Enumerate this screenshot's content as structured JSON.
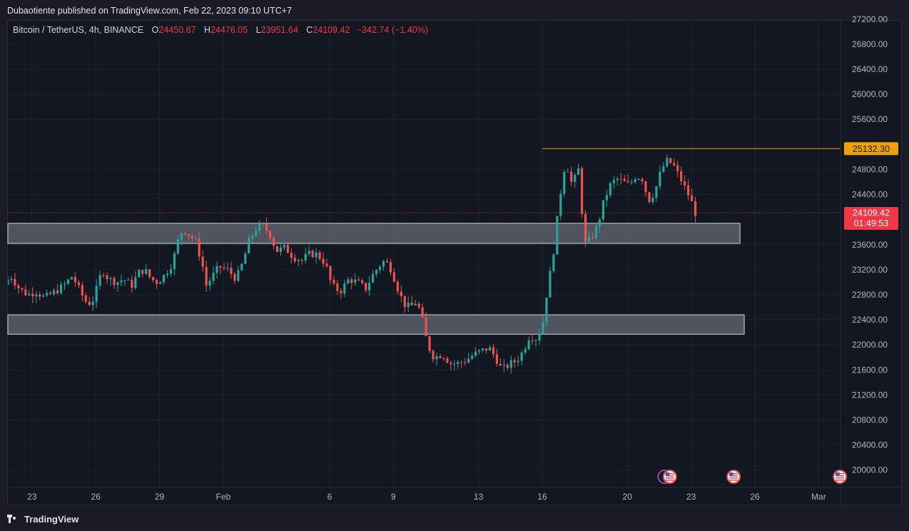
{
  "header": {
    "published": "Dubaotiente published on TradingView.com, Feb 22, 2023 09:10 UTC+7"
  },
  "legend": {
    "symbol": "Bitcoin / TetherUS, 4h, BINANCE",
    "o_label": "O",
    "o": "24450.67",
    "h_label": "H",
    "h": "24476.05",
    "l_label": "L",
    "l": "23951.64",
    "c_label": "C",
    "c": "24109.42",
    "change": "−342.74 (−1.40%)"
  },
  "price_tags": {
    "resistance": "25132.30",
    "last": "24109.42",
    "countdown": "01:49:53"
  },
  "footer": {
    "brand": "TradingView"
  },
  "colors": {
    "up": "#26a69a",
    "down": "#ef5350",
    "resistance": "#f0a000",
    "zone": "#5c5f68",
    "bg": "#131722"
  },
  "events": [
    {
      "day": 20.75,
      "icon": "lightning-icon"
    },
    {
      "day": 21.0,
      "icon": "us-flag-icon"
    },
    {
      "day": 24.0,
      "icon": "us-flag-icon"
    },
    {
      "day": 29.0,
      "icon": "us-flag-icon"
    }
  ],
  "chart_data": {
    "type": "candlestick",
    "title": "",
    "xlabel": "",
    "ylabel": "",
    "x_ticks": [
      {
        "label": "23",
        "day": -9
      },
      {
        "label": "26",
        "day": -6
      },
      {
        "label": "29",
        "day": -3
      },
      {
        "label": "Feb",
        "day": 0
      },
      {
        "label": "6",
        "day": 5
      },
      {
        "label": "9",
        "day": 8
      },
      {
        "label": "13",
        "day": 12
      },
      {
        "label": "16",
        "day": 15
      },
      {
        "label": "20",
        "day": 19
      },
      {
        "label": "23",
        "day": 22
      },
      {
        "label": "26",
        "day": 25
      },
      {
        "label": "Mar",
        "day": 28
      }
    ],
    "y_ticks": [
      "20000.00",
      "20400.00",
      "20800.00",
      "21200.00",
      "21600.00",
      "22000.00",
      "22400.00",
      "22800.00",
      "23200.00",
      "23600.00",
      "24400.00",
      "24800.00",
      "25600.00",
      "26000.00",
      "26400.00",
      "26800.00",
      "27200.00"
    ],
    "ylim": [
      19800,
      27200
    ],
    "resistance_level": 25132.3,
    "last_price": 24109.42,
    "zones": [
      {
        "top": 23940,
        "bottom": 23620,
        "day_start": -10.3,
        "day_end": 24.3
      },
      {
        "top": 22480,
        "bottom": 22170,
        "day_start": -10.3,
        "day_end": 24.5
      }
    ],
    "close_path": [
      [
        -10.3,
        22960
      ],
      [
        -10.0,
        23100
      ],
      [
        -9.6,
        22900
      ],
      [
        -9.2,
        22800
      ],
      [
        -8.8,
        22850
      ],
      [
        -8.4,
        22750
      ],
      [
        -7.9,
        22850
      ],
      [
        -7.5,
        22950
      ],
      [
        -7.1,
        23100
      ],
      [
        -6.8,
        22900
      ],
      [
        -6.5,
        22700
      ],
      [
        -6.2,
        22650
      ],
      [
        -6.0,
        22850
      ],
      [
        -5.7,
        23200
      ],
      [
        -5.4,
        23050
      ],
      [
        -5.0,
        23000
      ],
      [
        -4.7,
        23050
      ],
      [
        -4.3,
        22950
      ],
      [
        -4.0,
        23150
      ],
      [
        -3.7,
        23200
      ],
      [
        -3.4,
        23050
      ],
      [
        -3.1,
        23000
      ],
      [
        -2.8,
        23100
      ],
      [
        -2.4,
        23300
      ],
      [
        -2.1,
        23700
      ],
      [
        -1.9,
        23850
      ],
      [
        -1.6,
        23750
      ],
      [
        -1.3,
        23650
      ],
      [
        -1.0,
        23300
      ],
      [
        -0.8,
        22950
      ],
      [
        -0.5,
        23100
      ],
      [
        -0.2,
        23250
      ],
      [
        0.2,
        23200
      ],
      [
        0.6,
        23050
      ],
      [
        0.9,
        23300
      ],
      [
        1.2,
        23650
      ],
      [
        1.5,
        23850
      ],
      [
        1.9,
        23900
      ],
      [
        2.2,
        23750
      ],
      [
        2.5,
        23500
      ],
      [
        2.9,
        23550
      ],
      [
        3.3,
        23400
      ],
      [
        3.7,
        23350
      ],
      [
        4.0,
        23450
      ],
      [
        4.4,
        23450
      ],
      [
        4.8,
        23300
      ],
      [
        5.1,
        22950
      ],
      [
        5.5,
        22850
      ],
      [
        5.9,
        23050
      ],
      [
        6.3,
        23000
      ],
      [
        6.7,
        22900
      ],
      [
        7.0,
        23100
      ],
      [
        7.3,
        23250
      ],
      [
        7.6,
        23350
      ],
      [
        7.9,
        23200
      ],
      [
        8.2,
        22900
      ],
      [
        8.5,
        22650
      ],
      [
        8.8,
        22600
      ],
      [
        9.1,
        22700
      ],
      [
        9.4,
        22350
      ],
      [
        9.6,
        22000
      ],
      [
        9.9,
        21800
      ],
      [
        10.3,
        21850
      ],
      [
        10.7,
        21700
      ],
      [
        11.0,
        21700
      ],
      [
        11.4,
        21750
      ],
      [
        11.8,
        21850
      ],
      [
        12.1,
        21900
      ],
      [
        12.5,
        21950
      ],
      [
        12.8,
        21800
      ],
      [
        13.1,
        21600
      ],
      [
        13.5,
        21700
      ],
      [
        13.8,
        21750
      ],
      [
        14.1,
        21900
      ],
      [
        14.4,
        22150
      ],
      [
        14.7,
        22100
      ],
      [
        15.0,
        22300
      ],
      [
        15.2,
        22800
      ],
      [
        15.5,
        23400
      ],
      [
        15.8,
        24300
      ],
      [
        16.1,
        24950
      ],
      [
        16.4,
        24550
      ],
      [
        16.7,
        24800
      ],
      [
        17.0,
        23600
      ],
      [
        17.3,
        23700
      ],
      [
        17.6,
        23900
      ],
      [
        17.9,
        24300
      ],
      [
        18.2,
        24550
      ],
      [
        18.5,
        24650
      ],
      [
        18.8,
        24600
      ],
      [
        19.1,
        24550
      ],
      [
        19.4,
        24700
      ],
      [
        19.7,
        24650
      ],
      [
        20.0,
        24300
      ],
      [
        20.3,
        24450
      ],
      [
        20.6,
        24800
      ],
      [
        20.9,
        24950
      ],
      [
        21.2,
        24850
      ],
      [
        21.5,
        24650
      ],
      [
        21.8,
        24450
      ],
      [
        22.0,
        24300
      ],
      [
        22.2,
        24109
      ]
    ]
  }
}
